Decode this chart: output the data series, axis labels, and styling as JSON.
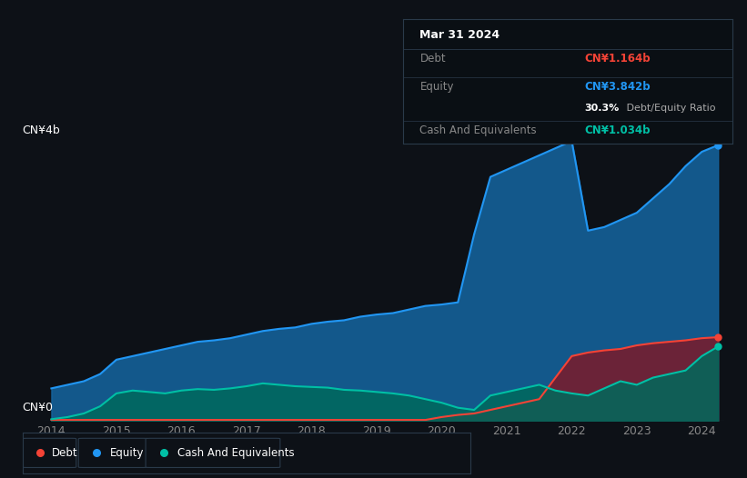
{
  "background_color": "#0d1117",
  "plot_bg_color": "#0d1117",
  "title": "Mar 31 2024",
  "tooltip_debt": "CN¥1.164b",
  "tooltip_equity": "CN¥3.842b",
  "tooltip_ratio": "30.3%",
  "tooltip_cash": "CN¥1.034b",
  "ylabel_top": "CN¥4b",
  "ylabel_bottom": "CN¥0",
  "grid_color": "#1e2a38",
  "equity_color": "#2196f3",
  "equity_fill": "#1565a0",
  "debt_color": "#f44336",
  "debt_fill": "#7b1a2a",
  "cash_color": "#00bfa5",
  "cash_fill": "#00695c",
  "legend_border": "#2a3a4a",
  "years": [
    2014,
    2014.25,
    2014.5,
    2014.75,
    2015,
    2015.25,
    2015.5,
    2015.75,
    2016,
    2016.25,
    2016.5,
    2016.75,
    2017,
    2017.25,
    2017.5,
    2017.75,
    2018,
    2018.25,
    2018.5,
    2018.75,
    2019,
    2019.25,
    2019.5,
    2019.75,
    2020,
    2020.25,
    2020.5,
    2020.75,
    2021,
    2021.25,
    2021.5,
    2021.75,
    2022,
    2022.25,
    2022.5,
    2022.75,
    2023,
    2023.25,
    2023.5,
    2023.75,
    2024,
    2024.25
  ],
  "equity": [
    0.45,
    0.5,
    0.55,
    0.65,
    0.85,
    0.9,
    0.95,
    1.0,
    1.05,
    1.1,
    1.12,
    1.15,
    1.2,
    1.25,
    1.28,
    1.3,
    1.35,
    1.38,
    1.4,
    1.45,
    1.48,
    1.5,
    1.55,
    1.6,
    1.62,
    1.65,
    2.6,
    3.4,
    3.5,
    3.6,
    3.7,
    3.8,
    3.9,
    2.65,
    2.7,
    2.8,
    2.9,
    3.1,
    3.3,
    3.55,
    3.75,
    3.842
  ],
  "debt": [
    0.01,
    0.01,
    0.01,
    0.01,
    0.01,
    0.01,
    0.01,
    0.01,
    0.01,
    0.01,
    0.01,
    0.01,
    0.01,
    0.01,
    0.01,
    0.01,
    0.01,
    0.01,
    0.01,
    0.01,
    0.01,
    0.01,
    0.01,
    0.01,
    0.05,
    0.08,
    0.1,
    0.15,
    0.2,
    0.25,
    0.3,
    0.6,
    0.9,
    0.95,
    0.98,
    1.0,
    1.05,
    1.08,
    1.1,
    1.12,
    1.15,
    1.164
  ],
  "cash": [
    0.02,
    0.05,
    0.1,
    0.2,
    0.38,
    0.42,
    0.4,
    0.38,
    0.42,
    0.44,
    0.43,
    0.45,
    0.48,
    0.52,
    0.5,
    0.48,
    0.47,
    0.46,
    0.43,
    0.42,
    0.4,
    0.38,
    0.35,
    0.3,
    0.25,
    0.18,
    0.15,
    0.35,
    0.4,
    0.45,
    0.5,
    0.42,
    0.38,
    0.35,
    0.45,
    0.55,
    0.5,
    0.6,
    0.65,
    0.7,
    0.9,
    1.034
  ],
  "xticks": [
    2014,
    2015,
    2016,
    2017,
    2018,
    2019,
    2020,
    2021,
    2022,
    2023,
    2024
  ],
  "xticklabels": [
    "2014",
    "2015",
    "2016",
    "2017",
    "2018",
    "2019",
    "2020",
    "2021",
    "2022",
    "2023",
    "2024"
  ],
  "ylim": [
    0,
    4.0
  ],
  "xlim": [
    2013.9,
    2024.35
  ]
}
